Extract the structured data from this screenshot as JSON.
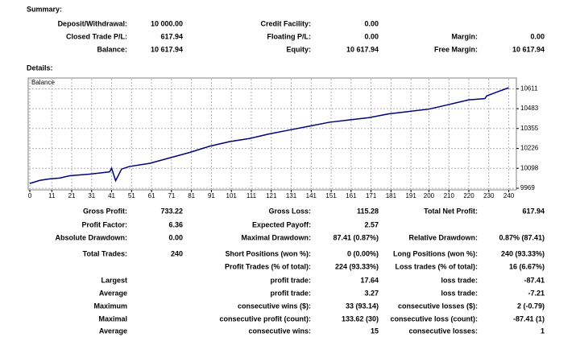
{
  "summary": {
    "title": "Summary:",
    "rows": [
      [
        "Deposit/Withdrawal:",
        "10 000.00",
        "Credit Facility:",
        "0.00",
        null,
        null
      ],
      [
        "Closed Trade P/L:",
        "617.94",
        "Floating P/L:",
        "0.00",
        "Margin:",
        "0.00"
      ],
      [
        "Balance:",
        "10 617.94",
        "Equity:",
        "10 617.94",
        "Free Margin:",
        "10 617.94"
      ]
    ]
  },
  "details": {
    "title": "Details:",
    "rows": [
      [
        "Gross Profit:",
        "733.22",
        "Gross Loss:",
        "115.28",
        "Total Net Profit:",
        "617.94"
      ],
      [
        "Profit Factor:",
        "6.36",
        "Expected Payoff:",
        "2.57",
        null,
        null
      ],
      [
        "Absolute Drawdown:",
        "0.00",
        "Maximal Drawdown:",
        "87.41 (0.87%)",
        "Relative Drawdown:",
        "0.87% (87.41)"
      ],
      [
        "Total Trades:",
        "240",
        "Short Positions (won %):",
        "0 (0.00%)",
        "Long Positions (won %):",
        "240 (93.33%)"
      ],
      [
        null,
        null,
        "Profit Trades (% of total):",
        "224 (93.33%)",
        "Loss trades (% of total):",
        "16 (6.67%)"
      ],
      [
        "Largest",
        null,
        "profit trade:",
        "17.64",
        "loss trade:",
        "-87.41"
      ],
      [
        "Average",
        null,
        "profit trade:",
        "3.27",
        "loss trade:",
        "-7.21"
      ],
      [
        "Maximum",
        null,
        "consecutive wins ($):",
        "33 (93.14)",
        "consecutive losses ($):",
        "2 (-0.79)"
      ],
      [
        "Maximal",
        null,
        "consecutive profit (count):",
        "133.62 (30)",
        "consecutive loss (count):",
        "-87.41 (1)"
      ],
      [
        "Average",
        null,
        "consecutive wins:",
        "15",
        "consecutive losses:",
        "1"
      ]
    ]
  },
  "chart_data": {
    "type": "line",
    "x": [
      0,
      5,
      10,
      15,
      20,
      30,
      40,
      41,
      43,
      46,
      50,
      60,
      70,
      80,
      90,
      100,
      110,
      120,
      130,
      140,
      150,
      160,
      170,
      180,
      190,
      200,
      210,
      220,
      228,
      229,
      235,
      240
    ],
    "series": [
      {
        "name": "Balance",
        "color": "#000080",
        "values": [
          10000,
          10020,
          10030,
          10035,
          10050,
          10060,
          10075,
          10098,
          10018,
          10093,
          10110,
          10130,
          10165,
          10200,
          10240,
          10270,
          10290,
          10320,
          10345,
          10370,
          10395,
          10410,
          10425,
          10450,
          10465,
          10480,
          10510,
          10540,
          10548,
          10566,
          10595,
          10618
        ]
      }
    ],
    "xlim": [
      0,
      243
    ],
    "ylim": [
      9959,
      10681
    ],
    "xticks": [
      0,
      11,
      21,
      31,
      41,
      51,
      61,
      71,
      81,
      91,
      101,
      111,
      121,
      131,
      141,
      151,
      161,
      171,
      181,
      191,
      200,
      210,
      220,
      230,
      240
    ],
    "yticks": [
      9969,
      10098,
      10226,
      10355,
      10483,
      10611
    ],
    "grid": true
  }
}
